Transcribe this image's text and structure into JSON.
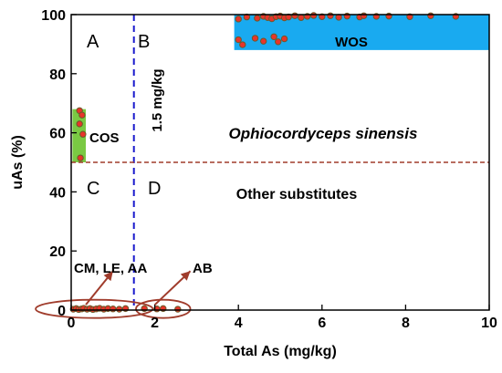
{
  "chart_data": {
    "type": "scatter",
    "xlabel": "Total As (mg/kg)",
    "ylabel": "uAs (%)",
    "xlim": [
      0,
      10
    ],
    "ylim": [
      0,
      100
    ],
    "x_ticks": [
      0,
      2,
      4,
      6,
      8,
      10
    ],
    "y_ticks": [
      0,
      20,
      40,
      60,
      80,
      100
    ],
    "vline": {
      "x": 1.5,
      "label": "1.5 mg/kg",
      "color": "#1a1acc"
    },
    "hline": {
      "y": 50,
      "color": "#a03c2c"
    },
    "quadrants": [
      "A",
      "B",
      "C",
      "D"
    ],
    "regions": [
      {
        "label": "WOS",
        "x": [
          3.9,
          10
        ],
        "y": [
          88,
          100
        ],
        "color": "#19aaf0"
      },
      {
        "label": "COS",
        "x": [
          0.03,
          0.35
        ],
        "y": [
          50,
          68
        ],
        "color": "#7ac943"
      }
    ],
    "annotations": {
      "upper_label": "Ophiocordyceps sinensis",
      "lower_label": "Other substitutes",
      "group1": "CM, LE, AA",
      "group2": "AB"
    },
    "point_colors": {
      "fill": "#e8342a",
      "edge": "#6b5a2a"
    },
    "series": [
      {
        "points": [
          [
            4.0,
            98.5
          ],
          [
            4.2,
            99.2
          ],
          [
            4.45,
            98.8
          ],
          [
            4.6,
            99.4
          ],
          [
            4.7,
            99.0
          ],
          [
            4.8,
            98.6
          ],
          [
            4.9,
            99.3
          ],
          [
            5.0,
            99.5
          ],
          [
            5.1,
            98.9
          ],
          [
            5.2,
            99.2
          ],
          [
            5.35,
            99.6
          ],
          [
            5.5,
            99.0
          ],
          [
            5.65,
            99.4
          ],
          [
            5.8,
            99.7
          ],
          [
            6.0,
            99.3
          ],
          [
            6.2,
            99.6
          ],
          [
            6.4,
            99.1
          ],
          [
            6.6,
            99.5
          ],
          [
            6.9,
            99.2
          ],
          [
            7.0,
            99.6
          ],
          [
            7.3,
            99.4
          ],
          [
            7.6,
            99.5
          ],
          [
            8.1,
            99.3
          ],
          [
            8.6,
            99.6
          ],
          [
            9.2,
            99.4
          ],
          [
            4.0,
            91.5
          ],
          [
            4.1,
            89.8
          ],
          [
            4.4,
            92.0
          ],
          [
            4.6,
            91.0
          ],
          [
            4.85,
            92.5
          ],
          [
            4.95,
            90.8
          ],
          [
            5.1,
            91.8
          ],
          [
            0.2,
            67.5
          ],
          [
            0.26,
            66.0
          ],
          [
            0.2,
            63.0
          ],
          [
            0.28,
            59.5
          ],
          [
            0.22,
            51.5
          ],
          [
            0.05,
            0.3
          ],
          [
            0.12,
            0.5
          ],
          [
            0.18,
            0.2
          ],
          [
            0.25,
            0.4
          ],
          [
            0.3,
            0.6
          ],
          [
            0.38,
            0.3
          ],
          [
            0.45,
            0.5
          ],
          [
            0.52,
            0.2
          ],
          [
            0.6,
            0.4
          ],
          [
            0.68,
            0.6
          ],
          [
            0.78,
            0.3
          ],
          [
            0.88,
            0.5
          ],
          [
            1.0,
            0.4
          ],
          [
            1.15,
            0.3
          ],
          [
            1.3,
            0.5
          ],
          [
            1.75,
            0.5
          ],
          [
            2.05,
            0.4
          ],
          [
            2.2,
            0.5
          ],
          [
            2.55,
            0.3
          ]
        ]
      }
    ]
  }
}
